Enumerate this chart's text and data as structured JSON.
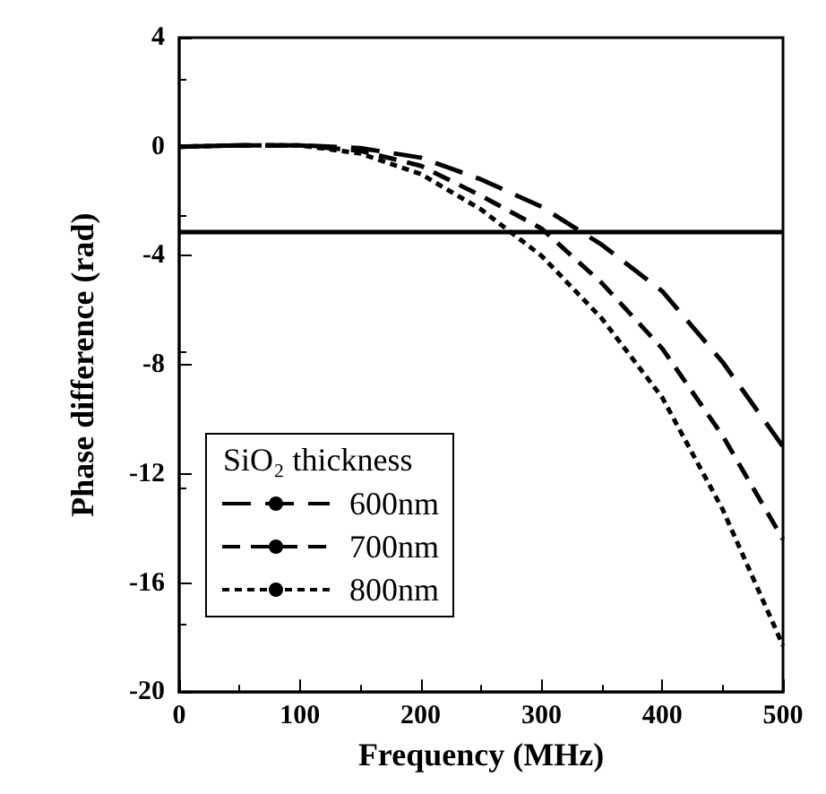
{
  "chart_data": {
    "type": "line",
    "xlabel": "Frequency (MHz)",
    "ylabel": "Phase difference (rad)",
    "legend_title": "SiO₂ thickness",
    "legend": "bottom left",
    "grid": false,
    "marker": "none",
    "x": [
      0,
      50,
      100,
      150,
      200,
      250,
      300,
      350,
      400,
      450,
      500
    ],
    "xlim": [
      0,
      500
    ],
    "xticks": [
      0,
      100,
      200,
      300,
      400,
      500
    ],
    "ylim": [
      -20,
      4
    ],
    "yticks": [
      4,
      0,
      -4,
      -8,
      -12,
      -16,
      -20
    ],
    "series": [
      {
        "name": "600nm",
        "color": "#000000",
        "line_style": "dashed",
        "values": [
          0,
          0.05,
          0.05,
          -0.05,
          -0.4,
          -1.2,
          -2.2,
          -3.6,
          -5.3,
          -7.9,
          -11
        ]
      },
      {
        "name": "700nm",
        "color": "#000000",
        "line_style": "dashed",
        "values": [
          0,
          0.05,
          0.05,
          -0.15,
          -0.7,
          -1.8,
          -3.0,
          -5.0,
          -7.4,
          -10.6,
          -14.4
        ]
      },
      {
        "name": "800nm",
        "color": "#000000",
        "line_style": "dotted",
        "values": [
          0,
          0.05,
          0.05,
          -0.25,
          -1.0,
          -2.3,
          -4.0,
          -6.3,
          -9.2,
          -13.3,
          -18.3
        ]
      }
    ],
    "ref_lines": [
      {
        "axis": "y",
        "value": -3.14,
        "color": "#000000",
        "line_style": "solid"
      }
    ]
  }
}
